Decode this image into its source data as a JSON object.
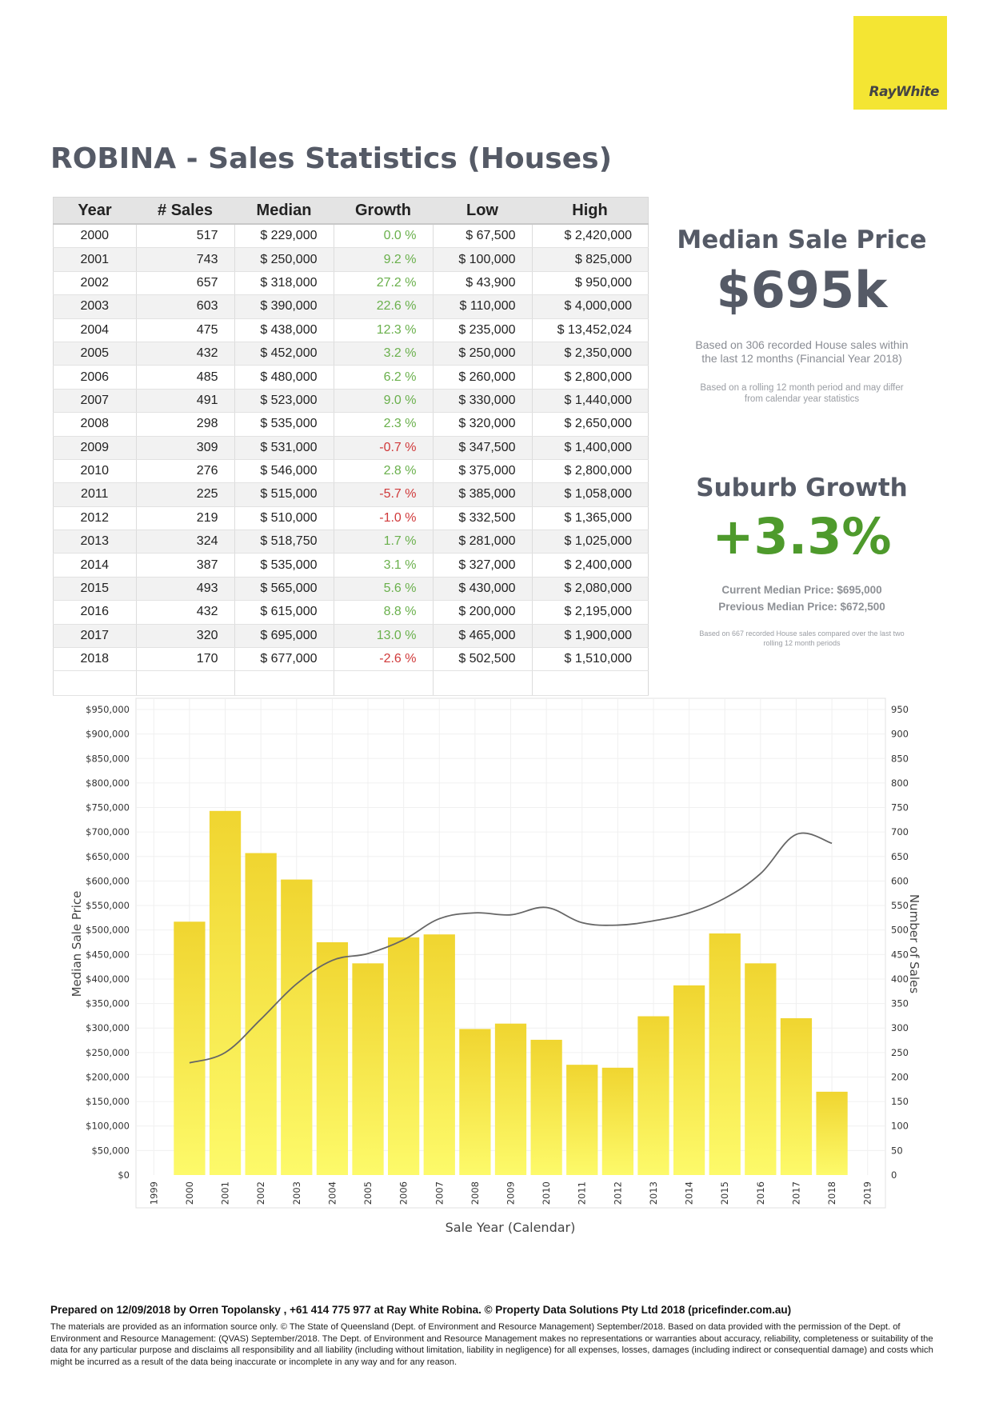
{
  "brand": {
    "logo_text": "RayWhite"
  },
  "title": "ROBINA - Sales Statistics (Houses)",
  "table": {
    "headers": [
      "Year",
      "# Sales",
      "Median",
      "Growth",
      "Low",
      "High"
    ],
    "rows": [
      {
        "year": "2000",
        "sales": "517",
        "median": "$ 229,000",
        "growth": "0.0 %",
        "low": "$ 67,500",
        "high": "$ 2,420,000"
      },
      {
        "year": "2001",
        "sales": "743",
        "median": "$ 250,000",
        "growth": "9.2 %",
        "low": "$ 100,000",
        "high": "$ 825,000"
      },
      {
        "year": "2002",
        "sales": "657",
        "median": "$ 318,000",
        "growth": "27.2 %",
        "low": "$ 43,900",
        "high": "$ 950,000"
      },
      {
        "year": "2003",
        "sales": "603",
        "median": "$ 390,000",
        "growth": "22.6 %",
        "low": "$ 110,000",
        "high": "$ 4,000,000"
      },
      {
        "year": "2004",
        "sales": "475",
        "median": "$ 438,000",
        "growth": "12.3 %",
        "low": "$ 235,000",
        "high": "$ 13,452,024"
      },
      {
        "year": "2005",
        "sales": "432",
        "median": "$ 452,000",
        "growth": "3.2 %",
        "low": "$ 250,000",
        "high": "$ 2,350,000"
      },
      {
        "year": "2006",
        "sales": "485",
        "median": "$ 480,000",
        "growth": "6.2 %",
        "low": "$ 260,000",
        "high": "$ 2,800,000"
      },
      {
        "year": "2007",
        "sales": "491",
        "median": "$ 523,000",
        "growth": "9.0 %",
        "low": "$ 330,000",
        "high": "$ 1,440,000"
      },
      {
        "year": "2008",
        "sales": "298",
        "median": "$ 535,000",
        "growth": "2.3 %",
        "low": "$ 320,000",
        "high": "$ 2,650,000"
      },
      {
        "year": "2009",
        "sales": "309",
        "median": "$ 531,000",
        "growth": "-0.7 %",
        "low": "$ 347,500",
        "high": "$ 1,400,000"
      },
      {
        "year": "2010",
        "sales": "276",
        "median": "$ 546,000",
        "growth": "2.8 %",
        "low": "$ 375,000",
        "high": "$ 2,800,000"
      },
      {
        "year": "2011",
        "sales": "225",
        "median": "$ 515,000",
        "growth": "-5.7 %",
        "low": "$ 385,000",
        "high": "$ 1,058,000"
      },
      {
        "year": "2012",
        "sales": "219",
        "median": "$ 510,000",
        "growth": "-1.0 %",
        "low": "$ 332,500",
        "high": "$ 1,365,000"
      },
      {
        "year": "2013",
        "sales": "324",
        "median": "$ 518,750",
        "growth": "1.7 %",
        "low": "$ 281,000",
        "high": "$ 1,025,000"
      },
      {
        "year": "2014",
        "sales": "387",
        "median": "$ 535,000",
        "growth": "3.1 %",
        "low": "$ 327,000",
        "high": "$ 2,400,000"
      },
      {
        "year": "2015",
        "sales": "493",
        "median": "$ 565,000",
        "growth": "5.6 %",
        "low": "$ 430,000",
        "high": "$ 2,080,000"
      },
      {
        "year": "2016",
        "sales": "432",
        "median": "$ 615,000",
        "growth": "8.8 %",
        "low": "$ 200,000",
        "high": "$ 2,195,000"
      },
      {
        "year": "2017",
        "sales": "320",
        "median": "$ 695,000",
        "growth": "13.0 %",
        "low": "$ 465,000",
        "high": "$ 1,900,000"
      },
      {
        "year": "2018",
        "sales": "170",
        "median": "$ 677,000",
        "growth": "-2.6 %",
        "low": "$ 502,500",
        "high": "$ 1,510,000"
      }
    ]
  },
  "median_panel": {
    "heading": "Median Sale Price",
    "value": "$695k",
    "note_line1": "Based on 306 recorded House sales within",
    "note_line2": "the last 12 months (Financial Year 2018)",
    "small_line1": "Based on a rolling 12 month period and may differ",
    "small_line2": "from calendar year statistics"
  },
  "growth_panel": {
    "heading": "Suburb Growth",
    "value": "+3.3%",
    "current": "Current Median Price: $695,000",
    "previous": "Previous Median Price: $672,500",
    "tiny_line1": "Based on 667 recorded House sales compared over the last two",
    "tiny_line2": "rolling 12 month periods"
  },
  "chart_data": {
    "type": "bar",
    "x_ticks": [
      "1999",
      "2000",
      "2001",
      "2002",
      "2003",
      "2004",
      "2005",
      "2006",
      "2007",
      "2008",
      "2009",
      "2010",
      "2011",
      "2012",
      "2013",
      "2014",
      "2015",
      "2016",
      "2017",
      "2018",
      "2019"
    ],
    "categories": [
      "2000",
      "2001",
      "2002",
      "2003",
      "2004",
      "2005",
      "2006",
      "2007",
      "2008",
      "2009",
      "2010",
      "2011",
      "2012",
      "2013",
      "2014",
      "2015",
      "2016",
      "2017",
      "2018"
    ],
    "series": [
      {
        "name": "Number of Sales",
        "type": "bar",
        "axis": "right",
        "values": [
          517,
          743,
          657,
          603,
          475,
          432,
          485,
          491,
          298,
          309,
          276,
          225,
          219,
          324,
          387,
          493,
          432,
          320,
          170
        ]
      },
      {
        "name": "Median Sale Price",
        "type": "line",
        "axis": "left",
        "values": [
          229000,
          250000,
          318000,
          390000,
          438000,
          452000,
          480000,
          523000,
          535000,
          531000,
          546000,
          515000,
          510000,
          518750,
          535000,
          565000,
          615000,
          695000,
          677000
        ]
      }
    ],
    "xlabel": "Sale Year (Calendar)",
    "ylabel_left": "Median Sale Price",
    "ylabel_right": "Number of Sales",
    "ylim_left": [
      0,
      950000
    ],
    "ylim_right": [
      0,
      950
    ],
    "left_ticks": [
      "$0",
      "$50,000",
      "$100,000",
      "$150,000",
      "$200,000",
      "$250,000",
      "$300,000",
      "$350,000",
      "$400,000",
      "$450,000",
      "$500,000",
      "$550,000",
      "$600,000",
      "$650,000",
      "$700,000",
      "$750,000",
      "$800,000",
      "$850,000",
      "$900,000",
      "$950,000"
    ],
    "right_ticks": [
      "0",
      "50",
      "100",
      "150",
      "200",
      "250",
      "300",
      "350",
      "400",
      "450",
      "500",
      "550",
      "600",
      "650",
      "700",
      "750",
      "800",
      "850",
      "900",
      "950"
    ],
    "grid": true,
    "colors": {
      "bar_top": "#f0d530",
      "bar_bottom": "#fdfa6a",
      "line": "#666666"
    }
  },
  "footer": {
    "prepared": "Prepared on 12/09/2018 by Orren Topolansky , +61 414 775 977 at Ray White Robina. © Property Data Solutions Pty Ltd 2018 (pricefinder.com.au)",
    "disclaimer": "The materials are provided as an information source only.  © The State of Queensland (Dept. of Environment and Resource Management) September/2018. Based on data provided with the permission of the Dept. of Environment and Resource Management: (QVAS) September/2018. The Dept. of Environment and Resource Management makes no representations or warranties about accuracy, reliability, completeness or suitability of the data for any particular purpose and disclaims all responsibility and all liability (including without limitation, liability in negligence) for all expenses, losses, damages (including indirect or consequential damage) and costs which might be incurred as a result of the data being inaccurate or incomplete in any way and for any reason."
  }
}
